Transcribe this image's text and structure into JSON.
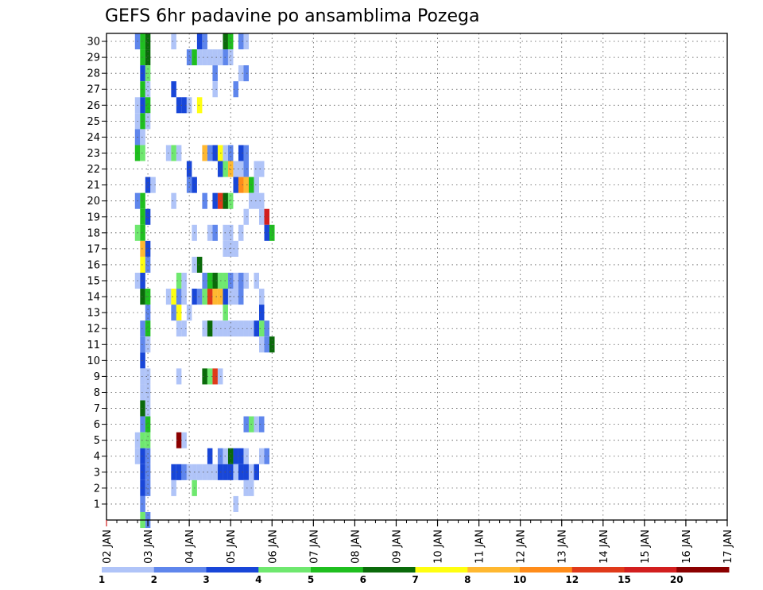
{
  "chart_data": {
    "type": "heatmap",
    "title": "GEFS 6hr padavine po ansamblima Pozega",
    "x_tick_labels": [
      "02 JAN",
      "03 JAN",
      "04 JAN",
      "05 JAN",
      "06 JAN",
      "07 JAN",
      "08 JAN",
      "09 JAN",
      "10 JAN",
      "11 JAN",
      "12 JAN",
      "13 JAN",
      "14 JAN",
      "15 JAN",
      "16 JAN",
      "17 JAN"
    ],
    "y_tick_labels": [
      "1",
      "2",
      "3",
      "4",
      "5",
      "6",
      "7",
      "8",
      "9",
      "10",
      "11",
      "12",
      "13",
      "14",
      "15",
      "16",
      "17",
      "18",
      "19",
      "20",
      "21",
      "22",
      "23",
      "24",
      "25",
      "26",
      "27",
      "28",
      "29",
      "30"
    ],
    "x_range": [
      0,
      60
    ],
    "y_range": [
      0,
      30.5
    ],
    "time_step": "6hr",
    "grid": true,
    "colorbar": {
      "thresholds": [
        "1",
        "2",
        "3",
        "4",
        "5",
        "6",
        "7",
        "8",
        "10",
        "12",
        "15",
        "20",
        ""
      ],
      "colors": [
        "#b0c4f8",
        "#5f86ec",
        "#1846d8",
        "#6fe86f",
        "#1fbf1f",
        "#0a6a0a",
        "#ffff10",
        "#ffb830",
        "#ff8c1a",
        "#e03a1a",
        "#d21e1e",
        "#8b0000"
      ]
    },
    "cells": [
      [
        6,
        30,
        1
      ],
      [
        7,
        30,
        4
      ],
      [
        8,
        30,
        5
      ],
      [
        13,
        30,
        0
      ],
      [
        18,
        30,
        2
      ],
      [
        19,
        30,
        1
      ],
      [
        23,
        30,
        5
      ],
      [
        24,
        30,
        4
      ],
      [
        26,
        30,
        1
      ],
      [
        27,
        30,
        0
      ],
      [
        7,
        29,
        4
      ],
      [
        8,
        29,
        5
      ],
      [
        16,
        29,
        1
      ],
      [
        17,
        29,
        4
      ],
      [
        18,
        29,
        0
      ],
      [
        19,
        29,
        0
      ],
      [
        20,
        29,
        0
      ],
      [
        21,
        29,
        0
      ],
      [
        22,
        29,
        0
      ],
      [
        23,
        29,
        1
      ],
      [
        24,
        29,
        0
      ],
      [
        7,
        28,
        2
      ],
      [
        8,
        28,
        3
      ],
      [
        21,
        28,
        1
      ],
      [
        26,
        28,
        0
      ],
      [
        27,
        28,
        1
      ],
      [
        7,
        27,
        4
      ],
      [
        8,
        27,
        0
      ],
      [
        13,
        27,
        2
      ],
      [
        21,
        27,
        0
      ],
      [
        25,
        27,
        1
      ],
      [
        6,
        26,
        0
      ],
      [
        7,
        26,
        2
      ],
      [
        8,
        26,
        4
      ],
      [
        14,
        26,
        2
      ],
      [
        15,
        26,
        2
      ],
      [
        16,
        26,
        0
      ],
      [
        18,
        26,
        6
      ],
      [
        6,
        25,
        0
      ],
      [
        7,
        25,
        4
      ],
      [
        8,
        25,
        0
      ],
      [
        6,
        24,
        1
      ],
      [
        7,
        24,
        0
      ],
      [
        6,
        23,
        4
      ],
      [
        7,
        23,
        3
      ],
      [
        12,
        23,
        0
      ],
      [
        13,
        23,
        3
      ],
      [
        14,
        23,
        0
      ],
      [
        19,
        23,
        7
      ],
      [
        20,
        23,
        1
      ],
      [
        21,
        23,
        2
      ],
      [
        22,
        23,
        6
      ],
      [
        23,
        23,
        0
      ],
      [
        24,
        23,
        1
      ],
      [
        26,
        23,
        2
      ],
      [
        27,
        23,
        1
      ],
      [
        16,
        22,
        2
      ],
      [
        22,
        22,
        2
      ],
      [
        23,
        22,
        3
      ],
      [
        24,
        22,
        7
      ],
      [
        25,
        22,
        0
      ],
      [
        26,
        22,
        0
      ],
      [
        27,
        22,
        1
      ],
      [
        29,
        22,
        0
      ],
      [
        30,
        22,
        0
      ],
      [
        16,
        21,
        1
      ],
      [
        17,
        21,
        2
      ],
      [
        8,
        21,
        2
      ],
      [
        9,
        21,
        0
      ],
      [
        25,
        21,
        2
      ],
      [
        26,
        21,
        8
      ],
      [
        27,
        21,
        7
      ],
      [
        28,
        21,
        4
      ],
      [
        29,
        21,
        0
      ],
      [
        6,
        20,
        1
      ],
      [
        7,
        20,
        4
      ],
      [
        13,
        20,
        0
      ],
      [
        19,
        20,
        1
      ],
      [
        21,
        20,
        2
      ],
      [
        22,
        20,
        9
      ],
      [
        23,
        20,
        5
      ],
      [
        24,
        20,
        3
      ],
      [
        28,
        20,
        0
      ],
      [
        29,
        20,
        0
      ],
      [
        30,
        20,
        0
      ],
      [
        7,
        19,
        4
      ],
      [
        8,
        19,
        2
      ],
      [
        27,
        19,
        0
      ],
      [
        30,
        19,
        0
      ],
      [
        31,
        19,
        10
      ],
      [
        6,
        18,
        3
      ],
      [
        7,
        18,
        4
      ],
      [
        17,
        18,
        0
      ],
      [
        20,
        18,
        0
      ],
      [
        21,
        18,
        1
      ],
      [
        23,
        18,
        0
      ],
      [
        24,
        18,
        0
      ],
      [
        26,
        18,
        0
      ],
      [
        31,
        18,
        2
      ],
      [
        32,
        18,
        4
      ],
      [
        7,
        17,
        7
      ],
      [
        8,
        17,
        2
      ],
      [
        23,
        17,
        0
      ],
      [
        24,
        17,
        0
      ],
      [
        25,
        17,
        0
      ],
      [
        7,
        16,
        6
      ],
      [
        8,
        16,
        1
      ],
      [
        17,
        16,
        0
      ],
      [
        18,
        16,
        5
      ],
      [
        6,
        15,
        0
      ],
      [
        7,
        15,
        2
      ],
      [
        14,
        15,
        3
      ],
      [
        15,
        15,
        0
      ],
      [
        19,
        15,
        1
      ],
      [
        20,
        15,
        4
      ],
      [
        21,
        15,
        5
      ],
      [
        22,
        15,
        3
      ],
      [
        23,
        15,
        3
      ],
      [
        24,
        15,
        1
      ],
      [
        25,
        15,
        0
      ],
      [
        26,
        15,
        1
      ],
      [
        27,
        15,
        0
      ],
      [
        29,
        15,
        0
      ],
      [
        7,
        14,
        5
      ],
      [
        8,
        14,
        4
      ],
      [
        12,
        14,
        0
      ],
      [
        13,
        14,
        6
      ],
      [
        14,
        14,
        1
      ],
      [
        15,
        14,
        0
      ],
      [
        17,
        14,
        2
      ],
      [
        18,
        14,
        1
      ],
      [
        19,
        14,
        3
      ],
      [
        20,
        14,
        9
      ],
      [
        21,
        14,
        7
      ],
      [
        22,
        14,
        7
      ],
      [
        23,
        14,
        2
      ],
      [
        24,
        14,
        0
      ],
      [
        25,
        14,
        0
      ],
      [
        26,
        14,
        1
      ],
      [
        30,
        14,
        0
      ],
      [
        8,
        13,
        1
      ],
      [
        13,
        13,
        1
      ],
      [
        14,
        13,
        6
      ],
      [
        16,
        13,
        0
      ],
      [
        23,
        13,
        3
      ],
      [
        30,
        13,
        2
      ],
      [
        7,
        12,
        1
      ],
      [
        8,
        12,
        4
      ],
      [
        14,
        12,
        0
      ],
      [
        15,
        12,
        0
      ],
      [
        19,
        12,
        0
      ],
      [
        20,
        12,
        5
      ],
      [
        21,
        12,
        0
      ],
      [
        22,
        12,
        0
      ],
      [
        23,
        12,
        0
      ],
      [
        24,
        12,
        0
      ],
      [
        25,
        12,
        0
      ],
      [
        26,
        12,
        0
      ],
      [
        27,
        12,
        0
      ],
      [
        28,
        12,
        0
      ],
      [
        29,
        12,
        2
      ],
      [
        30,
        12,
        3
      ],
      [
        31,
        12,
        1
      ],
      [
        7,
        11,
        1
      ],
      [
        8,
        11,
        0
      ],
      [
        30,
        11,
        0
      ],
      [
        31,
        11,
        1
      ],
      [
        32,
        11,
        5
      ],
      [
        7,
        10,
        2
      ],
      [
        7,
        9,
        0
      ],
      [
        8,
        9,
        0
      ],
      [
        14,
        9,
        0
      ],
      [
        19,
        9,
        5
      ],
      [
        20,
        9,
        3
      ],
      [
        21,
        9,
        9
      ],
      [
        22,
        9,
        0
      ],
      [
        7,
        8,
        0
      ],
      [
        8,
        8,
        0
      ],
      [
        7,
        7,
        5
      ],
      [
        8,
        7,
        0
      ],
      [
        7,
        6,
        1
      ],
      [
        8,
        6,
        4
      ],
      [
        27,
        6,
        1
      ],
      [
        28,
        6,
        3
      ],
      [
        29,
        6,
        0
      ],
      [
        30,
        6,
        1
      ],
      [
        6,
        5,
        0
      ],
      [
        7,
        5,
        3
      ],
      [
        8,
        5,
        3
      ],
      [
        14,
        5,
        11
      ],
      [
        15,
        5,
        0
      ],
      [
        6,
        4,
        0
      ],
      [
        7,
        4,
        2
      ],
      [
        8,
        4,
        1
      ],
      [
        20,
        4,
        2
      ],
      [
        22,
        4,
        1
      ],
      [
        23,
        4,
        0
      ],
      [
        24,
        4,
        5
      ],
      [
        25,
        4,
        2
      ],
      [
        26,
        4,
        2
      ],
      [
        27,
        4,
        0
      ],
      [
        30,
        4,
        0
      ],
      [
        31,
        4,
        1
      ],
      [
        7,
        3,
        2
      ],
      [
        8,
        3,
        1
      ],
      [
        13,
        3,
        2
      ],
      [
        14,
        3,
        2
      ],
      [
        15,
        3,
        1
      ],
      [
        16,
        3,
        0
      ],
      [
        17,
        3,
        0
      ],
      [
        18,
        3,
        0
      ],
      [
        19,
        3,
        0
      ],
      [
        20,
        3,
        0
      ],
      [
        21,
        3,
        0
      ],
      [
        22,
        3,
        2
      ],
      [
        23,
        3,
        2
      ],
      [
        24,
        3,
        2
      ],
      [
        25,
        3,
        0
      ],
      [
        26,
        3,
        2
      ],
      [
        27,
        3,
        2
      ],
      [
        28,
        3,
        0
      ],
      [
        29,
        3,
        2
      ],
      [
        7,
        2,
        2
      ],
      [
        8,
        2,
        1
      ],
      [
        13,
        2,
        0
      ],
      [
        17,
        2,
        3
      ],
      [
        27,
        2,
        0
      ],
      [
        28,
        2,
        0
      ],
      [
        7,
        1,
        1
      ],
      [
        25,
        1,
        0
      ],
      [
        7,
        0,
        3
      ],
      [
        8,
        0,
        1
      ]
    ]
  }
}
